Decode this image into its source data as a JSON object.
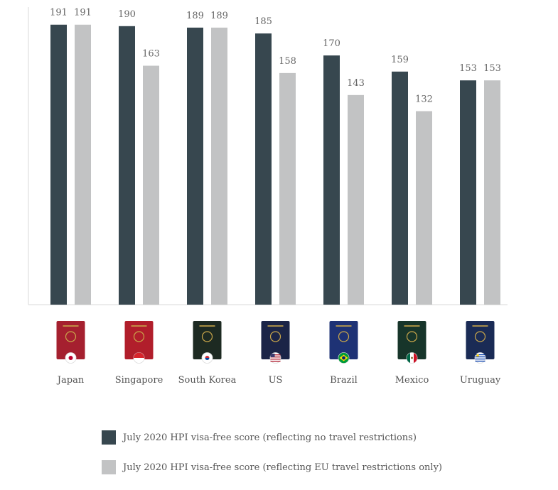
{
  "chart_data": {
    "type": "bar",
    "title": "",
    "xlabel": "",
    "ylabel": "",
    "ylim": [
      0,
      200
    ],
    "categories": [
      "Japan",
      "Singapore",
      "South Korea",
      "US",
      "Brazil",
      "Mexico",
      "Uruguay"
    ],
    "series": [
      {
        "name": "July 2020 HPI visa-free score (reflecting no travel restrictions)",
        "color": "#37474f",
        "values": [
          191,
          190,
          189,
          185,
          170,
          159,
          153
        ]
      },
      {
        "name": "July 2020 HPI visa-free score (reflecting EU travel restrictions only)",
        "color": "#c2c3c4",
        "values": [
          191,
          163,
          189,
          158,
          143,
          132,
          153
        ]
      }
    ],
    "passports": [
      {
        "color": "#a5202f",
        "flag_icon": "japan-flag-icon"
      },
      {
        "color": "#b11e2b",
        "flag_icon": "singapore-flag-icon"
      },
      {
        "color": "#1d2a22",
        "flag_icon": "south-korea-flag-icon"
      },
      {
        "color": "#1b2447",
        "flag_icon": "us-flag-icon"
      },
      {
        "color": "#1e3275",
        "flag_icon": "brazil-flag-icon"
      },
      {
        "color": "#17352a",
        "flag_icon": "mexico-flag-icon"
      },
      {
        "color": "#1a2b55",
        "flag_icon": "uruguay-flag-icon"
      }
    ],
    "grid": false,
    "legend_position": "bottom"
  }
}
